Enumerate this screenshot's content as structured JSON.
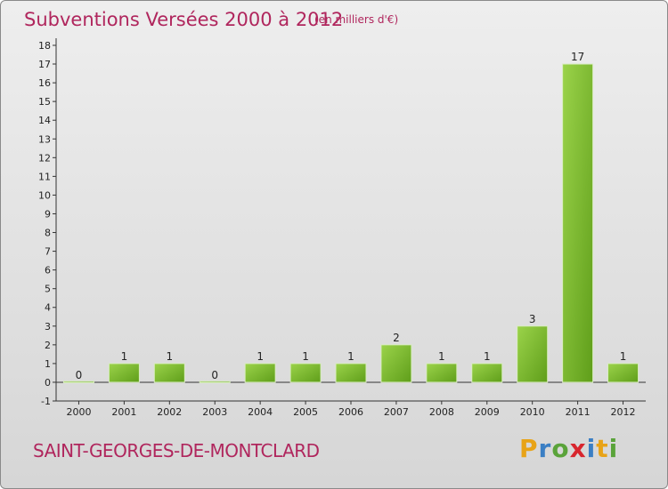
{
  "title": "Subventions Versées 2000 à 2012",
  "subtitle": "(en milliers d'€)",
  "commune": "SAINT-GEORGES-DE-MONTCLARD",
  "logo": {
    "letters": [
      "P",
      "r",
      "o",
      "x",
      "i",
      "t",
      "i"
    ],
    "colors": [
      "#e8a317",
      "#3b7fc4",
      "#5aa33a",
      "#d8262e",
      "#3b7fc4",
      "#e8a317",
      "#5aa33a"
    ]
  },
  "colors": {
    "bar_top": "#9bd34a",
    "bar_bottom": "#5f9e1a",
    "title": "#b0265d"
  },
  "chart_data": {
    "type": "bar",
    "categories": [
      "2000",
      "2001",
      "2002",
      "2003",
      "2004",
      "2005",
      "2006",
      "2007",
      "2008",
      "2009",
      "2010",
      "2011",
      "2012"
    ],
    "values": [
      0,
      1,
      1,
      0,
      1,
      1,
      1,
      2,
      1,
      1,
      3,
      17,
      1
    ],
    "ylim": [
      -1,
      18
    ],
    "yticks": [
      -1,
      0,
      1,
      2,
      3,
      4,
      5,
      6,
      7,
      8,
      9,
      10,
      11,
      12,
      13,
      14,
      15,
      16,
      17,
      18
    ],
    "grid": false,
    "legend": "none"
  }
}
